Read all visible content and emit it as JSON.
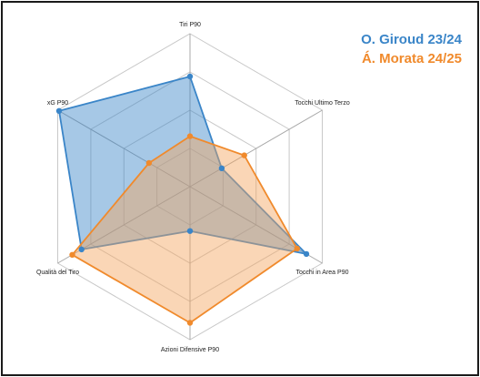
{
  "chart_data": {
    "type": "radar",
    "axes": [
      "Tiri P90",
      "Tocchi Ultimo Terzo",
      "Tocchi in Area P90",
      "Azioni Difensive P90",
      "Qualità del Tiro",
      "xG P90"
    ],
    "rmax": 1,
    "rings": 4,
    "grid": true,
    "legend_position": "top-right",
    "series": [
      {
        "name": "O. Giroud 23/24",
        "color": "#3a85c8",
        "fill": "#3a85c8",
        "values": [
          0.72,
          0.24,
          0.88,
          0.29,
          0.82,
          0.99
        ]
      },
      {
        "name": "Á. Morata 24/25",
        "color": "#f08a2c",
        "fill": "#f5a45e",
        "values": [
          0.33,
          0.41,
          0.81,
          0.89,
          0.89,
          0.31
        ]
      }
    ]
  }
}
